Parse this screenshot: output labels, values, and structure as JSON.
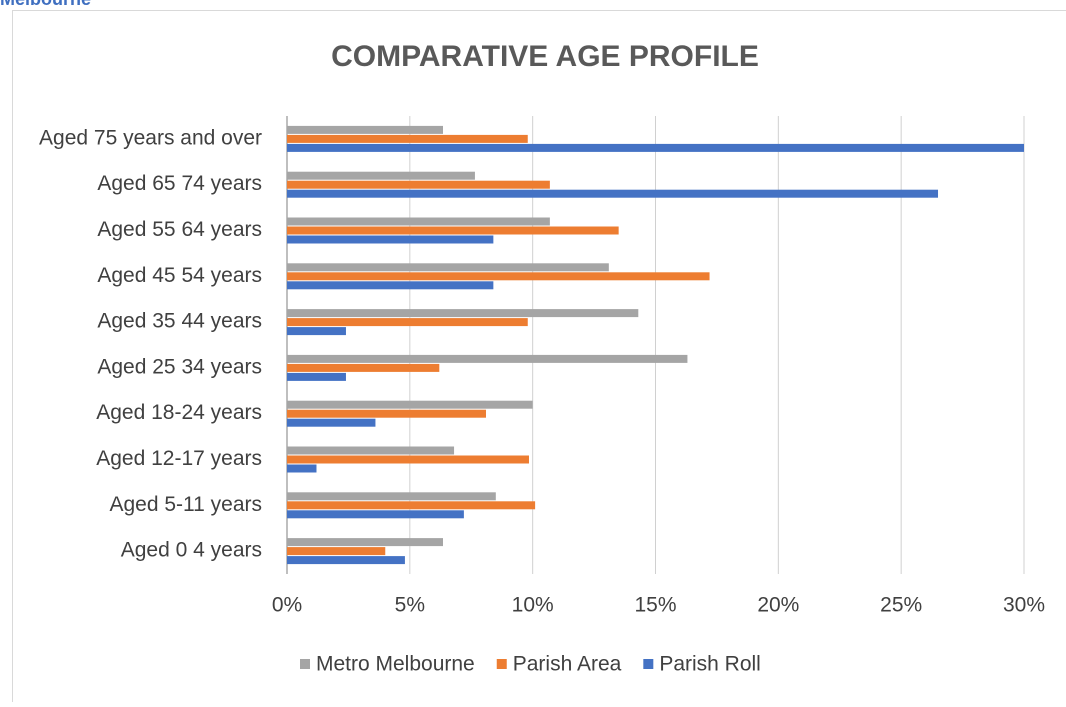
{
  "header": {
    "title": "Melbourne"
  },
  "chart_data": {
    "type": "hbar",
    "title": "COMPARATIVE AGE PROFILE",
    "categories": [
      "Aged 75 years and over",
      "Aged 65 74 years",
      "Aged 55 64 years",
      "Aged 45 54 years",
      "Aged 35 44 years",
      "Aged 25 34 years",
      "Aged 18-24 years",
      "Aged 12-17 years",
      "Aged 5-11 years",
      "Aged 0 4 years"
    ],
    "series": [
      {
        "name": "Metro Melbourne",
        "color": "#a5a5a5",
        "values": [
          6.35,
          7.65,
          10.7,
          13.1,
          14.3,
          16.3,
          10.0,
          6.8,
          8.5,
          6.35
        ]
      },
      {
        "name": "Parish Area",
        "color": "#ed7d31",
        "values": [
          9.8,
          10.7,
          13.5,
          17.2,
          9.8,
          6.2,
          8.1,
          9.85,
          10.1,
          4.0
        ]
      },
      {
        "name": "Parish Roll",
        "color": "#4472c4",
        "values": [
          30.0,
          26.5,
          8.4,
          8.4,
          2.4,
          2.4,
          3.6,
          1.2,
          7.2,
          4.8
        ]
      }
    ],
    "xlim": [
      0,
      30
    ],
    "xticks": [
      {
        "value": 0,
        "label": "0%"
      },
      {
        "value": 5,
        "label": "5%"
      },
      {
        "value": 10,
        "label": "10%"
      },
      {
        "value": 15,
        "label": "15%"
      },
      {
        "value": 20,
        "label": "20%"
      },
      {
        "value": 25,
        "label": "25%"
      },
      {
        "value": 30,
        "label": "30%"
      }
    ],
    "grid": true,
    "legend": "bottom"
  }
}
